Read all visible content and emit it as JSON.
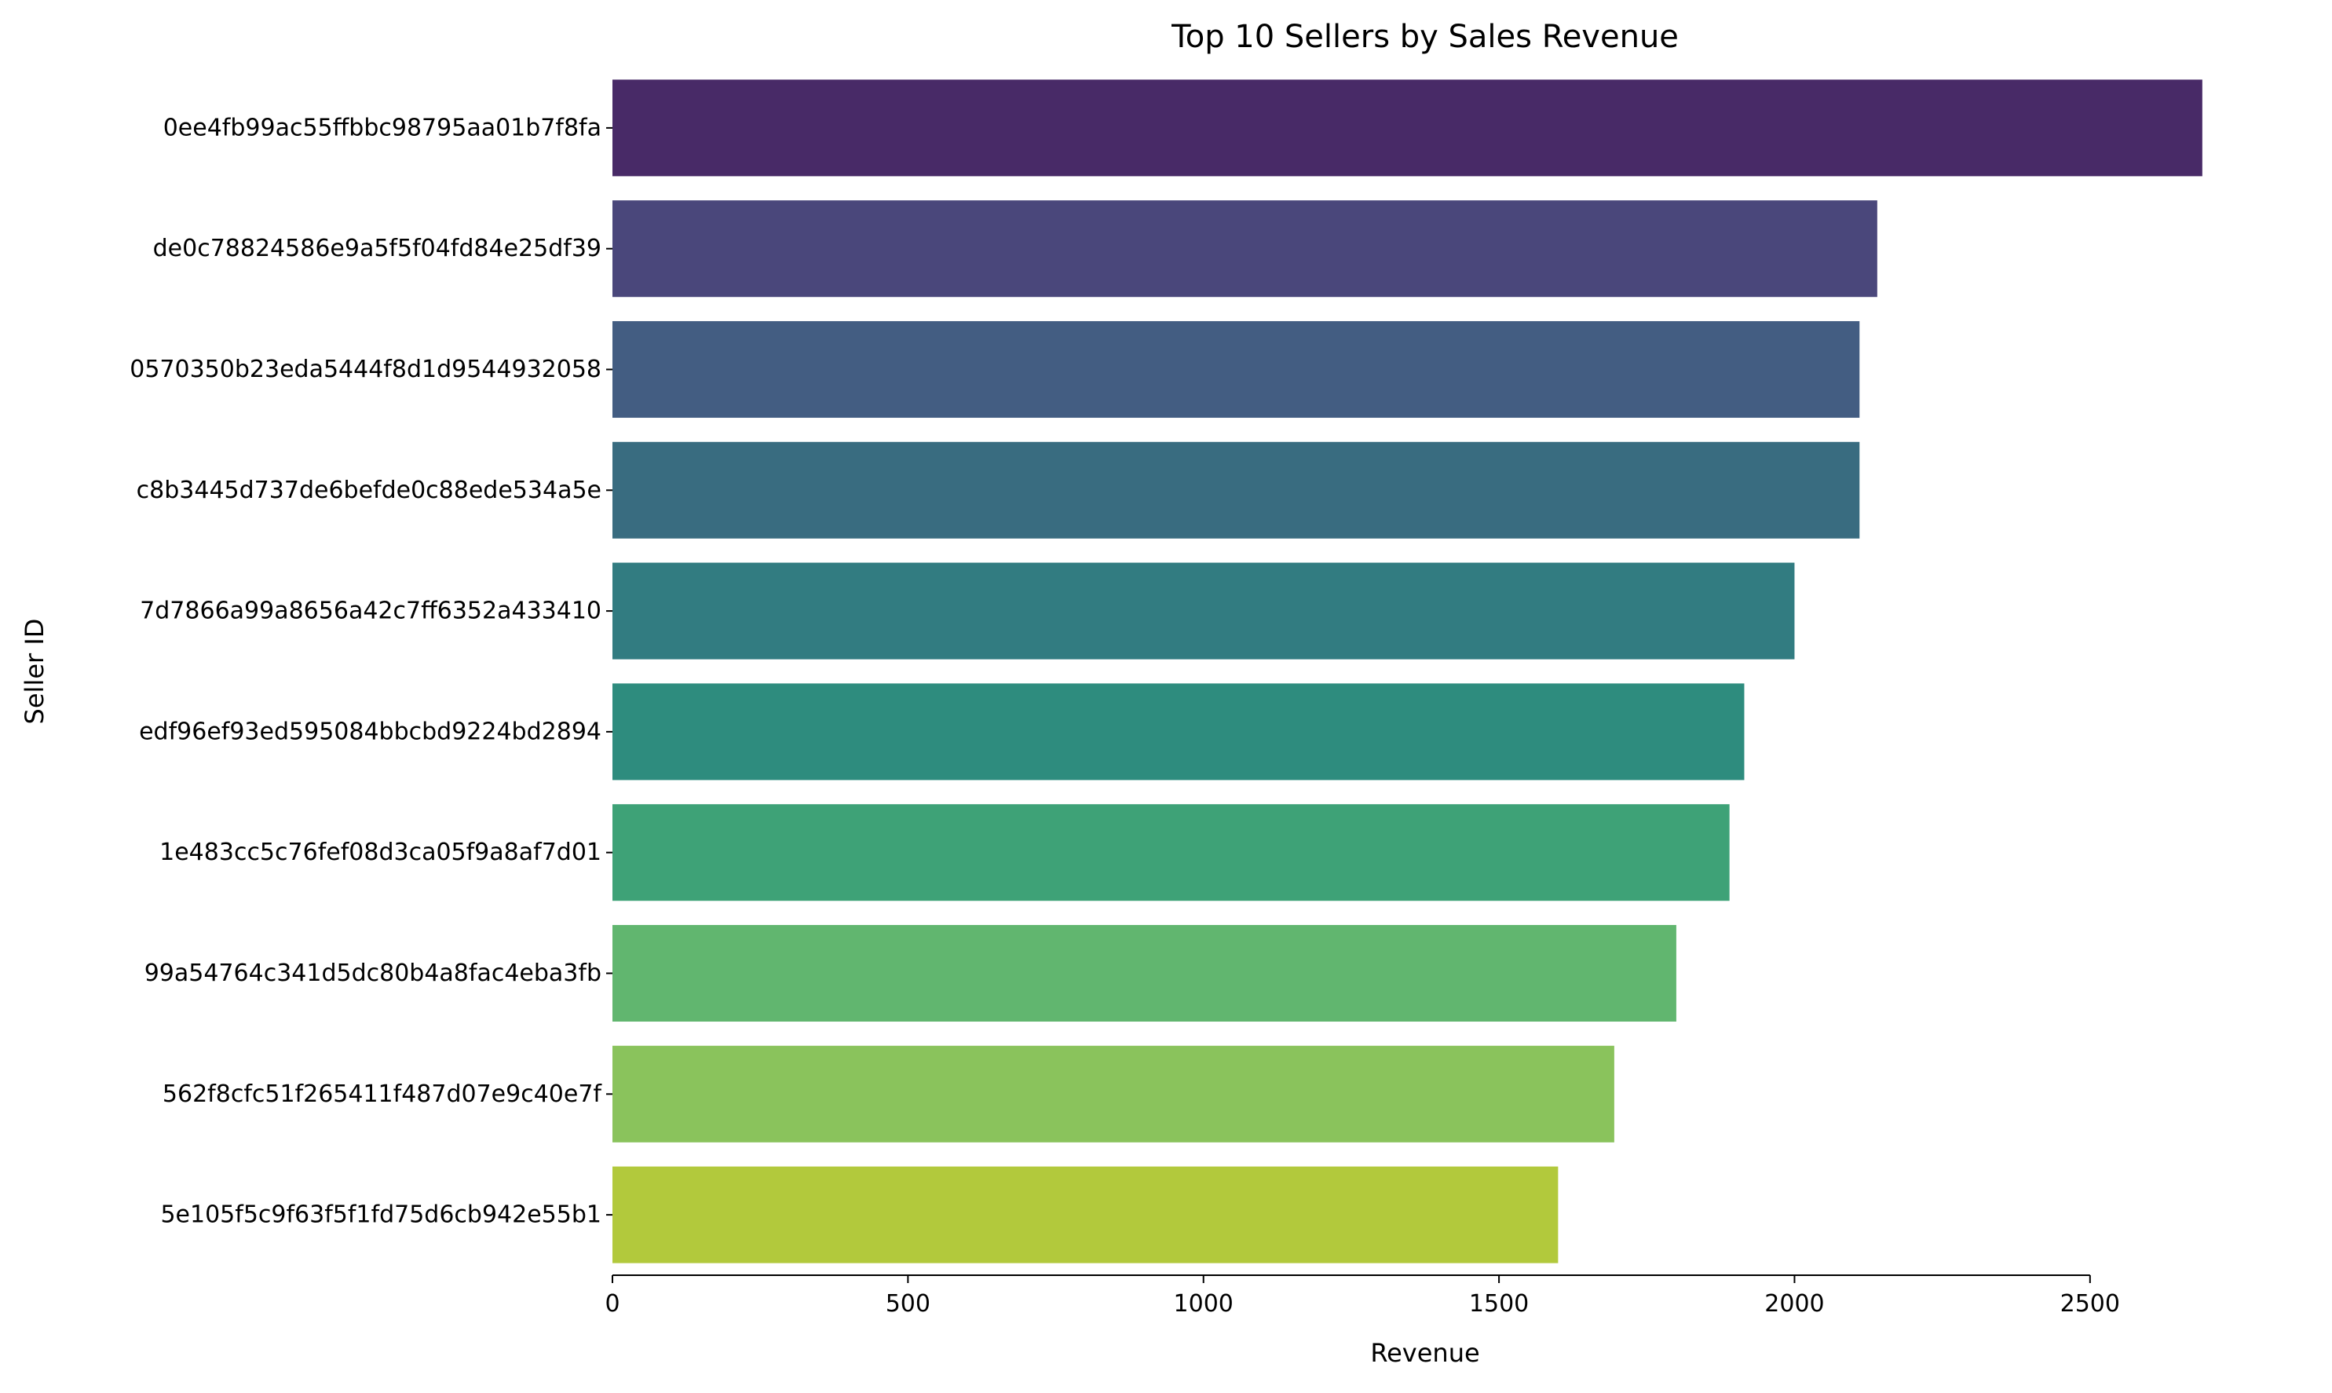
{
  "chart_data": {
    "type": "bar",
    "orientation": "horizontal",
    "title": "Top 10 Sellers by Sales Revenue",
    "xlabel": "Revenue",
    "ylabel": "Seller ID",
    "xlim": [
      0,
      2750
    ],
    "xticks": [
      0,
      500,
      1000,
      1500,
      2000,
      2500
    ],
    "xtick_labels": [
      "0",
      "500",
      "1000",
      "1500",
      "2000",
      "2500"
    ],
    "grid": false,
    "categories": [
      "0ee4fb99ac55ffbbc98795aa01b7f8fa",
      "de0c78824586e9a5f5f04fd84e25df39",
      "0570350b23eda5444f8d1d9544932058",
      "c8b3445d737de6befde0c88ede534a5e",
      "7d7866a99a8656a42c7ff6352a433410",
      "edf96ef93ed595084bbcbd9224bd2894",
      "1e483cc5c76fef08d3ca05f9a8af7d01",
      "99a54764c341d5dc80b4a8fac4eba3fb",
      "562f8cfc51f265411f487d07e9c40e7f",
      "5e105f5c9f63f5f1fd75d6cb942e55b1"
    ],
    "values": [
      2690,
      2140,
      2110,
      2110,
      2000,
      1915,
      1890,
      1800,
      1695,
      1600
    ],
    "colors": [
      "#482a67",
      "#4a477b",
      "#435d82",
      "#396c80",
      "#327c81",
      "#2e8c7e",
      "#3ea277",
      "#61b66f",
      "#8ac35c",
      "#b2c93c"
    ]
  }
}
